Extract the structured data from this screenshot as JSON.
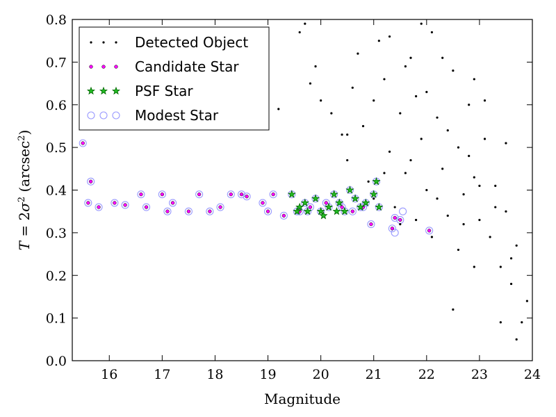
{
  "chart_data": {
    "type": "scatter",
    "xlabel": "Magnitude",
    "ylabel_parts": {
      "var": "T",
      "eq": " = 2",
      "sigma": "σ",
      "sq": "2",
      "unit": " (arcsec",
      "unit_sq": "2",
      "close": ")"
    },
    "xlim": [
      15.3,
      24.0
    ],
    "ylim": [
      0.0,
      0.8
    ],
    "xticks": [
      "16",
      "17",
      "18",
      "19",
      "20",
      "21",
      "22",
      "23",
      "24"
    ],
    "yticks": [
      "0.0",
      "0.1",
      "0.2",
      "0.3",
      "0.4",
      "0.5",
      "0.6",
      "0.7",
      "0.8"
    ],
    "grid": false,
    "legend_position": "top-left",
    "colors": {
      "detected": "#000000",
      "candidate": "#ff00ff",
      "psf_fill": "#22bb22",
      "psf_edge": "#006400",
      "modest": "#9999ff"
    },
    "series": [
      {
        "name": "Detected Object",
        "marker": "dot",
        "points": [
          [
            19.2,
            0.59
          ],
          [
            19.6,
            0.77
          ],
          [
            19.7,
            0.79
          ],
          [
            19.8,
            0.65
          ],
          [
            19.9,
            0.69
          ],
          [
            20.0,
            0.61
          ],
          [
            20.2,
            0.58
          ],
          [
            20.4,
            0.53
          ],
          [
            20.5,
            0.47
          ],
          [
            20.6,
            0.64
          ],
          [
            20.7,
            0.72
          ],
          [
            20.8,
            0.55
          ],
          [
            20.9,
            0.42
          ],
          [
            21.0,
            0.38
          ],
          [
            21.1,
            0.75
          ],
          [
            21.2,
            0.66
          ],
          [
            21.3,
            0.49
          ],
          [
            21.4,
            0.36
          ],
          [
            21.5,
            0.58
          ],
          [
            21.6,
            0.44
          ],
          [
            21.7,
            0.71
          ],
          [
            21.8,
            0.62
          ],
          [
            21.9,
            0.52
          ],
          [
            22.0,
            0.4
          ],
          [
            22.1,
            0.77
          ],
          [
            22.2,
            0.57
          ],
          [
            22.3,
            0.45
          ],
          [
            22.4,
            0.34
          ],
          [
            22.5,
            0.68
          ],
          [
            22.6,
            0.5
          ],
          [
            22.7,
            0.39
          ],
          [
            22.8,
            0.6
          ],
          [
            22.9,
            0.43
          ],
          [
            23.0,
            0.33
          ],
          [
            23.1,
            0.52
          ],
          [
            23.2,
            0.29
          ],
          [
            23.3,
            0.41
          ],
          [
            23.4,
            0.22
          ],
          [
            23.5,
            0.35
          ],
          [
            23.6,
            0.18
          ],
          [
            23.7,
            0.27
          ],
          [
            23.8,
            0.09
          ],
          [
            23.9,
            0.14
          ],
          [
            21.0,
            0.61
          ],
          [
            21.8,
            0.33
          ],
          [
            22.5,
            0.12
          ],
          [
            22.9,
            0.66
          ],
          [
            21.9,
            0.79
          ],
          [
            22.3,
            0.71
          ],
          [
            20.5,
            0.53
          ],
          [
            21.7,
            0.47
          ],
          [
            22.6,
            0.26
          ],
          [
            23.4,
            0.09
          ],
          [
            23.7,
            0.05
          ],
          [
            22.2,
            0.38
          ],
          [
            21.5,
            0.32
          ],
          [
            22.8,
            0.48
          ],
          [
            23.1,
            0.61
          ],
          [
            23.5,
            0.51
          ],
          [
            21.3,
            0.76
          ],
          [
            22.0,
            0.63
          ],
          [
            22.4,
            0.54
          ],
          [
            22.7,
            0.32
          ],
          [
            23.0,
            0.41
          ],
          [
            23.3,
            0.36
          ],
          [
            23.6,
            0.24
          ],
          [
            21.6,
            0.69
          ],
          [
            21.2,
            0.44
          ],
          [
            22.1,
            0.29
          ],
          [
            22.9,
            0.22
          ]
        ]
      },
      {
        "name": "Candidate Star",
        "marker": "circle",
        "points": [
          [
            15.5,
            0.51
          ],
          [
            15.6,
            0.37
          ],
          [
            15.65,
            0.42
          ],
          [
            15.8,
            0.36
          ],
          [
            16.1,
            0.37
          ],
          [
            16.3,
            0.365
          ],
          [
            16.6,
            0.39
          ],
          [
            16.7,
            0.36
          ],
          [
            17.0,
            0.39
          ],
          [
            17.1,
            0.35
          ],
          [
            17.2,
            0.37
          ],
          [
            17.5,
            0.35
          ],
          [
            17.7,
            0.39
          ],
          [
            17.9,
            0.35
          ],
          [
            18.1,
            0.36
          ],
          [
            18.3,
            0.39
          ],
          [
            18.5,
            0.39
          ],
          [
            18.6,
            0.385
          ],
          [
            18.9,
            0.37
          ],
          [
            19.0,
            0.35
          ],
          [
            19.1,
            0.39
          ],
          [
            19.3,
            0.34
          ],
          [
            19.6,
            0.35
          ],
          [
            19.8,
            0.36
          ],
          [
            20.1,
            0.37
          ],
          [
            20.4,
            0.36
          ],
          [
            20.6,
            0.35
          ],
          [
            20.8,
            0.36
          ],
          [
            20.95,
            0.32
          ],
          [
            21.35,
            0.31
          ],
          [
            21.4,
            0.335
          ],
          [
            21.5,
            0.33
          ],
          [
            22.05,
            0.305
          ]
        ]
      },
      {
        "name": "PSF Star",
        "marker": "star",
        "points": [
          [
            19.45,
            0.39
          ],
          [
            19.55,
            0.35
          ],
          [
            19.7,
            0.37
          ],
          [
            19.75,
            0.35
          ],
          [
            19.9,
            0.38
          ],
          [
            20.0,
            0.35
          ],
          [
            20.15,
            0.36
          ],
          [
            20.25,
            0.39
          ],
          [
            20.35,
            0.37
          ],
          [
            20.45,
            0.35
          ],
          [
            20.55,
            0.4
          ],
          [
            20.65,
            0.38
          ],
          [
            20.75,
            0.36
          ],
          [
            20.85,
            0.37
          ],
          [
            21.0,
            0.39
          ],
          [
            21.05,
            0.42
          ],
          [
            21.1,
            0.36
          ],
          [
            19.6,
            0.36
          ],
          [
            20.05,
            0.34
          ],
          [
            20.3,
            0.35
          ]
        ]
      },
      {
        "name": "Modest Star",
        "marker": "ring",
        "points": [
          [
            15.5,
            0.51
          ],
          [
            15.6,
            0.37
          ],
          [
            15.65,
            0.42
          ],
          [
            15.8,
            0.36
          ],
          [
            16.1,
            0.37
          ],
          [
            16.3,
            0.365
          ],
          [
            16.6,
            0.39
          ],
          [
            16.7,
            0.36
          ],
          [
            17.0,
            0.39
          ],
          [
            17.1,
            0.35
          ],
          [
            17.2,
            0.37
          ],
          [
            17.5,
            0.35
          ],
          [
            17.7,
            0.39
          ],
          [
            17.9,
            0.35
          ],
          [
            18.1,
            0.36
          ],
          [
            18.3,
            0.39
          ],
          [
            18.5,
            0.39
          ],
          [
            18.6,
            0.385
          ],
          [
            18.9,
            0.37
          ],
          [
            19.0,
            0.35
          ],
          [
            19.1,
            0.39
          ],
          [
            19.3,
            0.34
          ],
          [
            19.6,
            0.35
          ],
          [
            19.8,
            0.36
          ],
          [
            20.1,
            0.37
          ],
          [
            20.4,
            0.36
          ],
          [
            20.6,
            0.35
          ],
          [
            20.8,
            0.36
          ],
          [
            20.95,
            0.32
          ],
          [
            21.35,
            0.31
          ],
          [
            21.4,
            0.335
          ],
          [
            21.5,
            0.33
          ],
          [
            22.05,
            0.305
          ],
          [
            19.45,
            0.39
          ],
          [
            19.55,
            0.35
          ],
          [
            19.7,
            0.37
          ],
          [
            19.75,
            0.35
          ],
          [
            19.9,
            0.38
          ],
          [
            20.0,
            0.35
          ],
          [
            20.15,
            0.36
          ],
          [
            20.25,
            0.39
          ],
          [
            20.35,
            0.37
          ],
          [
            20.45,
            0.35
          ],
          [
            20.55,
            0.4
          ],
          [
            20.65,
            0.38
          ],
          [
            20.75,
            0.36
          ],
          [
            20.85,
            0.37
          ],
          [
            21.0,
            0.39
          ],
          [
            21.05,
            0.42
          ],
          [
            21.1,
            0.36
          ],
          [
            21.55,
            0.35
          ],
          [
            21.4,
            0.3
          ]
        ]
      }
    ]
  }
}
